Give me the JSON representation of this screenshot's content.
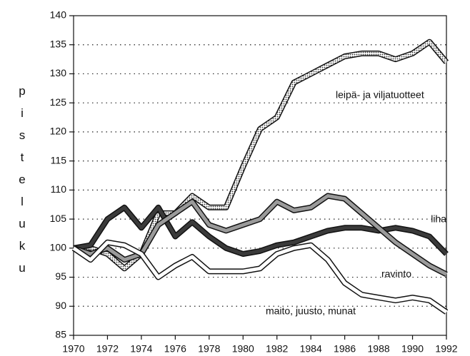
{
  "chart_data": {
    "type": "line",
    "y_label": "pisteluku",
    "x": [
      1970,
      1971,
      1972,
      1973,
      1974,
      1975,
      1976,
      1977,
      1978,
      1979,
      1980,
      1981,
      1982,
      1983,
      1984,
      1985,
      1986,
      1987,
      1988,
      1989,
      1990,
      1991,
      1992
    ],
    "xlim": [
      1970,
      1992
    ],
    "xticks": [
      1970,
      1972,
      1974,
      1976,
      1978,
      1980,
      1982,
      1984,
      1986,
      1988,
      1990,
      1992
    ],
    "ylim": [
      85,
      140
    ],
    "yticks": [
      85,
      90,
      95,
      100,
      105,
      110,
      115,
      120,
      125,
      130,
      135,
      140
    ],
    "grid": true,
    "series": [
      {
        "name": "leipä-  ja viljatuotteet",
        "color": "#b8b8b8",
        "values": [
          100,
          100,
          99,
          96.5,
          99,
          106,
          106,
          109,
          107,
          107,
          114,
          120.5,
          122.5,
          128.5,
          130,
          131.5,
          133,
          133.5,
          133.5,
          132.5,
          133.5,
          135.5,
          132
        ]
      },
      {
        "name": "liha",
        "color": "#3a3a3a",
        "values": [
          100,
          100.5,
          105,
          107,
          103.5,
          107,
          102,
          104.5,
          102,
          100,
          99,
          99.5,
          100.5,
          101,
          102,
          103,
          103.5,
          103.5,
          103,
          103.5,
          103,
          102,
          99
        ]
      },
      {
        "name": "ravinto",
        "color": "#9a9a9a",
        "values": [
          100,
          99,
          100,
          98,
          99,
          104,
          106,
          108,
          104,
          103,
          104,
          105,
          108,
          106.5,
          107,
          109,
          108.5,
          106,
          103.5,
          101,
          99,
          97,
          95.5
        ]
      },
      {
        "name": "maito, juusto, munat",
        "color": "#ffffff",
        "values": [
          100,
          98,
          101,
          100.5,
          99,
          95,
          97,
          98.5,
          96,
          96,
          96,
          96.5,
          99,
          100,
          100.5,
          98,
          94,
          92,
          91.5,
          91,
          91.5,
          91,
          89
        ]
      }
    ]
  }
}
